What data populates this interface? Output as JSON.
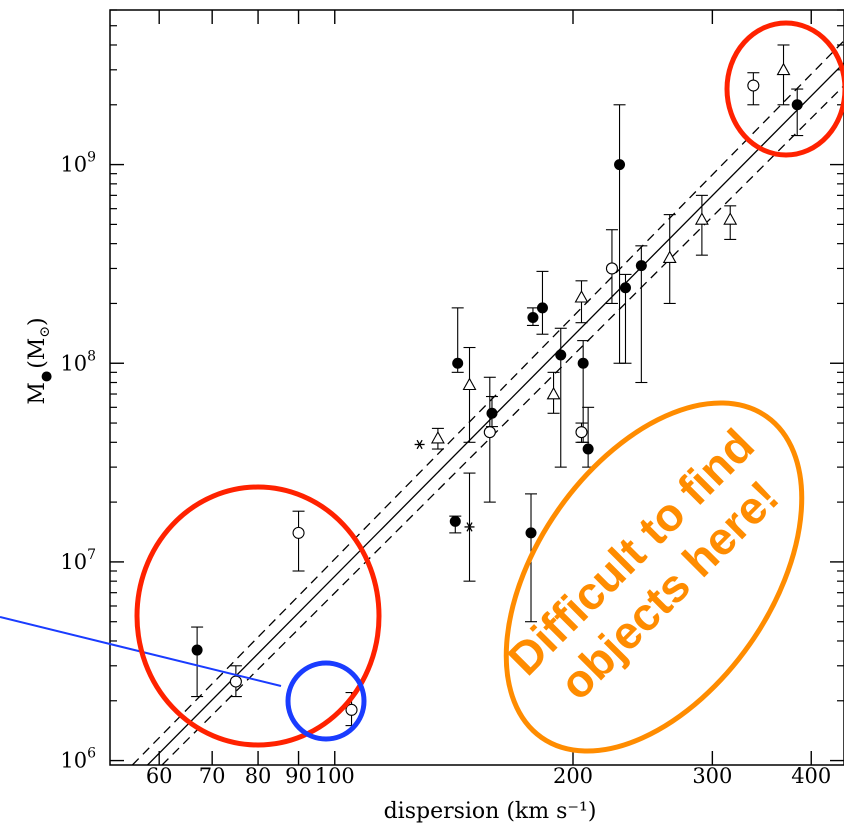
{
  "chart_data": {
    "type": "scatter",
    "title": "",
    "xlabel": "dispersion (km s⁻¹)",
    "ylabel": "M",
    "ylabel_sub": "●",
    "ylabel_unit": "(M",
    "ylabel_unit_sub": "⊙",
    "ylabel_unit_close": ")",
    "x_scale": "log",
    "y_scale": "log",
    "xlim": [
      52,
      440
    ],
    "ylim": [
      950000,
      6000000000
    ],
    "grid": false,
    "legend": "none",
    "x_ticks": [
      {
        "value": 60,
        "label": "60"
      },
      {
        "value": 70,
        "label": "70"
      },
      {
        "value": 80,
        "label": "80"
      },
      {
        "value": 90,
        "label": "90"
      },
      {
        "value": 100,
        "label": "100"
      },
      {
        "value": 200,
        "label": "200"
      },
      {
        "value": 300,
        "label": "300"
      },
      {
        "value": 400,
        "label": "400"
      }
    ],
    "y_ticks": [
      {
        "value": 1000000,
        "base": "10",
        "exp": "6"
      },
      {
        "value": 10000000,
        "base": "10",
        "exp": "7"
      },
      {
        "value": 100000000,
        "base": "10",
        "exp": "8"
      },
      {
        "value": 1000000000,
        "base": "10",
        "exp": "9"
      }
    ],
    "series": [
      {
        "marker": "filled-circle",
        "points": [
          {
            "x": 67,
            "y": 3600000,
            "ylo": 2100000,
            "yhi": 4700000
          },
          {
            "x": 142,
            "y": 16000000,
            "ylo": 14000000,
            "yhi": 17000000
          },
          {
            "x": 143,
            "y": 100000000,
            "ylo": 90000000,
            "yhi": 190000000
          },
          {
            "x": 158,
            "y": 56000000,
            "ylo": 48000000,
            "yhi": 68000000
          },
          {
            "x": 177,
            "y": 14000000,
            "ylo": 5000000,
            "yhi": 22000000
          },
          {
            "x": 178,
            "y": 170000000,
            "ylo": 155000000,
            "yhi": 190000000
          },
          {
            "x": 183,
            "y": 190000000,
            "ylo": 140000000,
            "yhi": 290000000
          },
          {
            "x": 193,
            "y": 110000000,
            "ylo": 30000000,
            "yhi": 150000000
          },
          {
            "x": 206,
            "y": 100000000,
            "ylo": 40000000,
            "yhi": 130000000
          },
          {
            "x": 209,
            "y": 37000000,
            "ylo": 30000000,
            "yhi": 60000000
          },
          {
            "x": 229,
            "y": 1000000000,
            "ylo": 100000000,
            "yhi": 2000000000
          },
          {
            "x": 233,
            "y": 240000000,
            "ylo": 100000000,
            "yhi": 280000000
          },
          {
            "x": 244,
            "y": 310000000,
            "ylo": 80000000,
            "yhi": 390000000
          },
          {
            "x": 384,
            "y": 2000000000,
            "ylo": 1400000000,
            "yhi": 2400000000
          }
        ]
      },
      {
        "marker": "open-circle",
        "points": [
          {
            "x": 75,
            "y": 2500000,
            "ylo": 2100000,
            "yhi": 3000000
          },
          {
            "x": 90,
            "y": 14000000,
            "ylo": 9000000,
            "yhi": 18000000
          },
          {
            "x": 105,
            "y": 1800000,
            "ylo": 1500000,
            "yhi": 2200000
          },
          {
            "x": 157,
            "y": 45000000,
            "ylo": 20000000,
            "yhi": 85000000
          },
          {
            "x": 205,
            "y": 45000000,
            "ylo": 40000000,
            "yhi": 50000000
          },
          {
            "x": 224,
            "y": 300000000,
            "ylo": 200000000,
            "yhi": 470000000
          },
          {
            "x": 338,
            "y": 2500000000,
            "ylo": 2000000000,
            "yhi": 2900000000
          }
        ]
      },
      {
        "marker": "open-triangle",
        "points": [
          {
            "x": 135,
            "y": 42000000,
            "ylo": 37000000,
            "yhi": 47000000
          },
          {
            "x": 148,
            "y": 78000000,
            "ylo": 40000000,
            "yhi": 120000000
          },
          {
            "x": 189,
            "y": 70000000,
            "ylo": 56000000,
            "yhi": 90000000
          },
          {
            "x": 205,
            "y": 215000000,
            "ylo": 160000000,
            "yhi": 260000000
          },
          {
            "x": 265,
            "y": 340000000,
            "ylo": 200000000,
            "yhi": 560000000
          },
          {
            "x": 291,
            "y": 530000000,
            "ylo": 350000000,
            "yhi": 700000000
          },
          {
            "x": 316,
            "y": 530000000,
            "ylo": 420000000,
            "yhi": 620000000
          },
          {
            "x": 369,
            "y": 3000000000,
            "ylo": 2000000000,
            "yhi": 4000000000
          }
        ]
      },
      {
        "marker": "asterisk",
        "points": [
          {
            "x": 128,
            "y": 39000000,
            "ylo": 39000000,
            "yhi": 39000000
          },
          {
            "x": 148,
            "y": 15000000,
            "ylo": 8000000,
            "yhi": 28000000
          }
        ]
      }
    ],
    "fit_lines": [
      {
        "style": "solid",
        "points": [
          {
            "x": 58,
            "y": 950000
          },
          {
            "x": 440,
            "y": 3250000000
          }
        ]
      },
      {
        "style": "dashed",
        "points": [
          {
            "x": 55.5,
            "y": 950000
          },
          {
            "x": 440,
            "y": 4200000000
          }
        ]
      },
      {
        "style": "dashed",
        "points": [
          {
            "x": 60.5,
            "y": 950000
          },
          {
            "x": 440,
            "y": 2500000000
          }
        ]
      }
    ]
  },
  "annotations": {
    "callout_lines": [
      "Difficult to find",
      "objects here!"
    ],
    "colors": {
      "red_circle": "#ff2200",
      "blue_circle": "#1a3cff",
      "blue_line": "#1a3cff",
      "orange": "#ff8c00"
    }
  }
}
